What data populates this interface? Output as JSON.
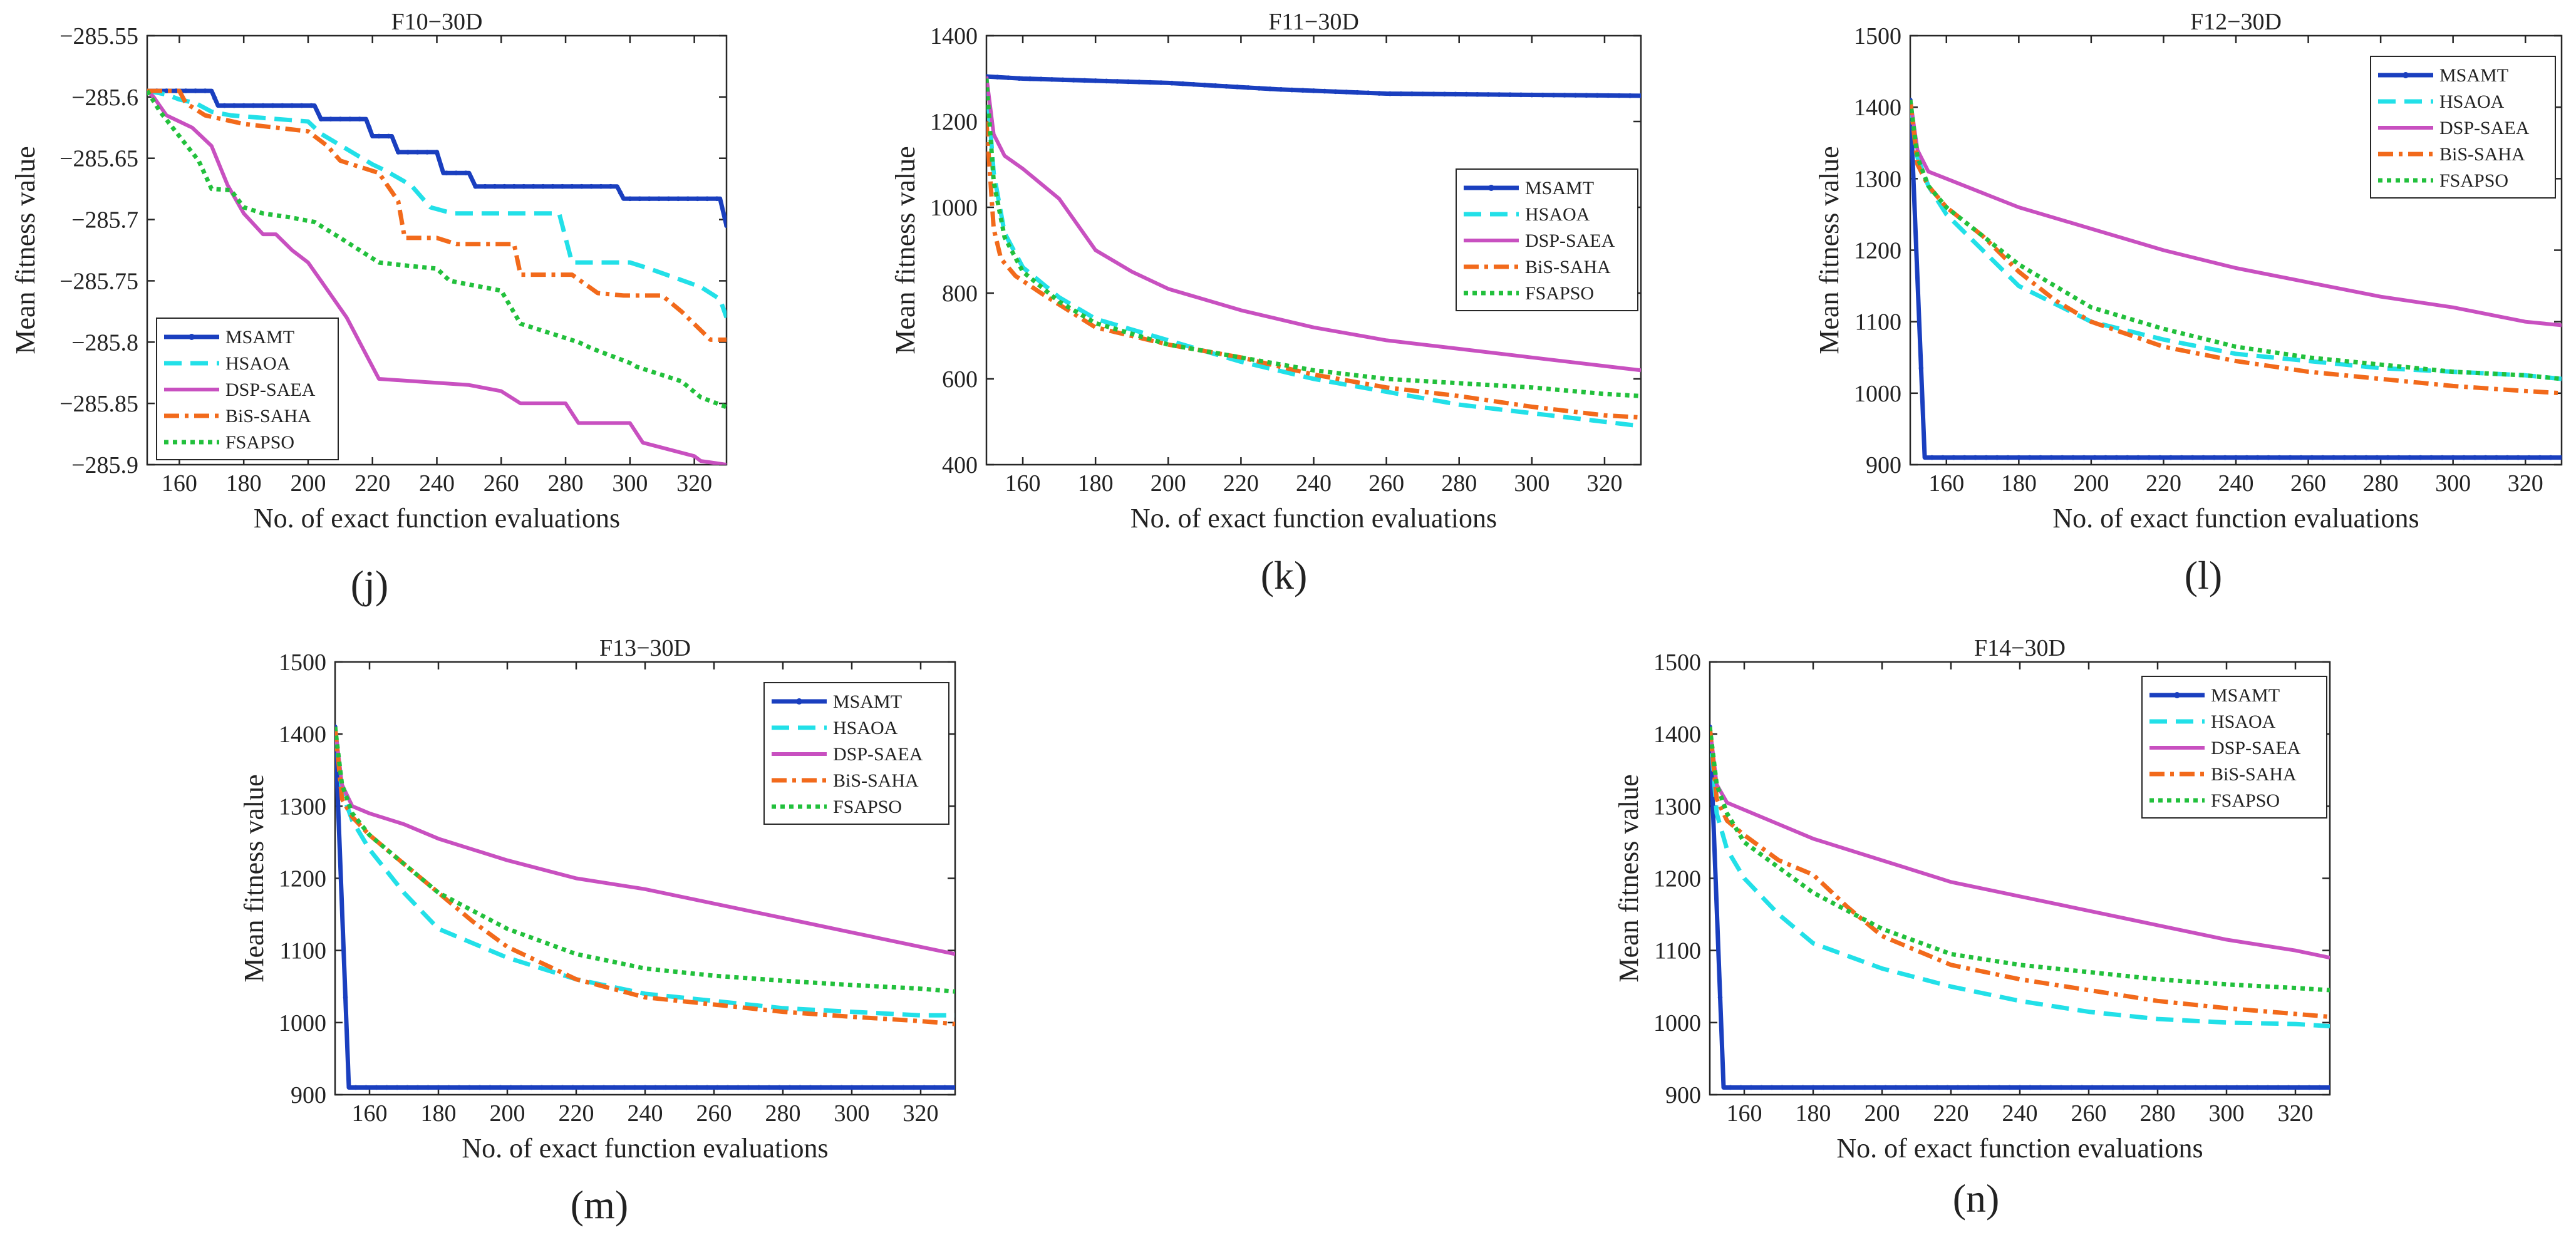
{
  "figure": {
    "series_colors": {
      "MSAMT": "#1a3fbf",
      "HSAOA": "#22e0e8",
      "DSP-SAEA": "#c850c0",
      "BiS-SAHA": "#f26a1b",
      "FSAPSO": "#22c03c"
    }
  },
  "chart_data": [
    {
      "type": "line",
      "panel": "(j)",
      "title": "F10−30D",
      "xlabel": "No. of exact function evaluations",
      "ylabel": "Mean fitness value",
      "xlim": [
        150,
        330
      ],
      "ylim": [
        -285.9,
        -285.55
      ],
      "xticks": [
        160,
        180,
        200,
        220,
        240,
        260,
        280,
        300,
        320
      ],
      "yticks": [
        -285.55,
        -285.6,
        -285.65,
        -285.7,
        -285.75,
        -285.8,
        -285.85,
        -285.9
      ],
      "ytick_labels": [
        "−285.55",
        "−285.6",
        "−285.65",
        "−285.7",
        "−285.75",
        "−285.8",
        "−285.85",
        "−285.9"
      ],
      "legend": "bottom-left",
      "series": [
        {
          "name": "MSAMT",
          "x": [
            150,
            170,
            172,
            202,
            204,
            218,
            220,
            226,
            228,
            240,
            242,
            250,
            252,
            296,
            298,
            328,
            330
          ],
          "y": [
            -285.595,
            -285.595,
            -285.607,
            -285.607,
            -285.618,
            -285.618,
            -285.632,
            -285.632,
            -285.645,
            -285.645,
            -285.662,
            -285.662,
            -285.673,
            -285.673,
            -285.683,
            -285.683,
            -285.705
          ]
        },
        {
          "name": "HSAOA",
          "x": [
            150,
            156,
            160,
            165,
            170,
            176,
            200,
            204,
            220,
            224,
            232,
            238,
            245,
            252,
            278,
            282,
            300,
            306,
            322,
            328,
            330
          ],
          "y": [
            -285.595,
            -285.598,
            -285.602,
            -285.605,
            -285.612,
            -285.615,
            -285.62,
            -285.63,
            -285.655,
            -285.66,
            -285.672,
            -285.69,
            -285.695,
            -285.695,
            -285.695,
            -285.735,
            -285.735,
            -285.74,
            -285.755,
            -285.765,
            -285.78
          ]
        },
        {
          "name": "DSP-SAEA",
          "x": [
            150,
            152,
            156,
            160,
            164,
            170,
            175,
            180,
            186,
            190,
            195,
            200,
            204,
            208,
            212,
            218,
            222,
            250,
            260,
            266,
            280,
            284,
            300,
            304,
            320,
            322,
            330
          ],
          "y": [
            -285.595,
            -285.6,
            -285.615,
            -285.62,
            -285.625,
            -285.64,
            -285.672,
            -285.695,
            -285.712,
            -285.712,
            -285.725,
            -285.735,
            -285.75,
            -285.765,
            -285.78,
            -285.81,
            -285.83,
            -285.835,
            -285.84,
            -285.85,
            -285.85,
            -285.866,
            -285.866,
            -285.882,
            -285.893,
            -285.897,
            -285.9
          ]
        },
        {
          "name": "BiS-SAHA",
          "x": [
            150,
            160,
            162,
            168,
            180,
            200,
            206,
            210,
            222,
            228,
            230,
            240,
            246,
            264,
            266,
            282,
            290,
            298,
            310,
            316,
            325,
            330
          ],
          "y": [
            -285.595,
            -285.595,
            -285.605,
            -285.615,
            -285.622,
            -285.628,
            -285.64,
            -285.652,
            -285.662,
            -285.685,
            -285.715,
            -285.715,
            -285.72,
            -285.72,
            -285.745,
            -285.745,
            -285.76,
            -285.762,
            -285.762,
            -285.775,
            -285.798,
            -285.798
          ]
        },
        {
          "name": "FSAPSO",
          "x": [
            150,
            154,
            160,
            166,
            170,
            176,
            180,
            186,
            194,
            202,
            210,
            216,
            222,
            232,
            240,
            244,
            260,
            266,
            284,
            288,
            300,
            302,
            316,
            322,
            330
          ],
          "y": [
            -285.595,
            -285.612,
            -285.632,
            -285.652,
            -285.675,
            -285.676,
            -285.69,
            -285.695,
            -285.698,
            -285.702,
            -285.715,
            -285.725,
            -285.735,
            -285.738,
            -285.74,
            -285.75,
            -285.758,
            -285.785,
            -285.8,
            -285.805,
            -285.817,
            -285.82,
            -285.832,
            -285.845,
            -285.853
          ]
        }
      ]
    },
    {
      "type": "line",
      "panel": "(k)",
      "title": "F11−30D",
      "xlabel": "No. of exact function evaluations",
      "ylabel": "Mean fitness value",
      "xlim": [
        150,
        330
      ],
      "ylim": [
        400,
        1400
      ],
      "xticks": [
        160,
        180,
        200,
        220,
        240,
        260,
        280,
        300,
        320
      ],
      "yticks": [
        400,
        600,
        800,
        1000,
        1200,
        1400
      ],
      "legend": "center-right",
      "series": [
        {
          "name": "MSAMT",
          "x": [
            150,
            160,
            200,
            230,
            260,
            300,
            330
          ],
          "y": [
            1305,
            1300,
            1290,
            1275,
            1265,
            1262,
            1260
          ]
        },
        {
          "name": "HSAOA",
          "x": [
            150,
            152,
            155,
            160,
            170,
            180,
            200,
            220,
            240,
            260,
            280,
            300,
            320,
            330
          ],
          "y": [
            1300,
            1080,
            940,
            860,
            790,
            740,
            690,
            640,
            600,
            570,
            540,
            520,
            500,
            490
          ]
        },
        {
          "name": "DSP-SAEA",
          "x": [
            150,
            152,
            155,
            160,
            170,
            180,
            190,
            200,
            220,
            240,
            260,
            280,
            300,
            320,
            330
          ],
          "y": [
            1305,
            1170,
            1120,
            1090,
            1020,
            900,
            850,
            810,
            760,
            720,
            690,
            670,
            650,
            630,
            620
          ]
        },
        {
          "name": "BiS-SAHA",
          "x": [
            150,
            152,
            154,
            158,
            165,
            180,
            200,
            220,
            240,
            260,
            280,
            300,
            320,
            330
          ],
          "y": [
            1200,
            950,
            880,
            840,
            800,
            720,
            680,
            650,
            610,
            580,
            560,
            535,
            515,
            510
          ]
        },
        {
          "name": "FSAPSO",
          "x": [
            150,
            152,
            155,
            160,
            170,
            180,
            200,
            220,
            240,
            260,
            280,
            300,
            320,
            330
          ],
          "y": [
            1300,
            1060,
            930,
            850,
            780,
            730,
            680,
            650,
            620,
            600,
            590,
            580,
            565,
            560
          ]
        }
      ]
    },
    {
      "type": "line",
      "panel": "(l)",
      "title": "F12−30D",
      "xlabel": "No. of exact function evaluations",
      "ylabel": "Mean fitness value",
      "xlim": [
        150,
        330
      ],
      "ylim": [
        900,
        1500
      ],
      "xticks": [
        160,
        180,
        200,
        220,
        240,
        260,
        280,
        300,
        320
      ],
      "yticks": [
        900,
        1000,
        1100,
        1200,
        1300,
        1400,
        1500
      ],
      "legend": "top-right",
      "series": [
        {
          "name": "MSAMT",
          "x": [
            150,
            154,
            160,
            200,
            260,
            330
          ],
          "y": [
            1410,
            910,
            910,
            910,
            910,
            910
          ]
        },
        {
          "name": "HSAOA",
          "x": [
            150,
            152,
            155,
            160,
            170,
            180,
            200,
            220,
            240,
            260,
            280,
            300,
            320,
            330
          ],
          "y": [
            1410,
            1330,
            1290,
            1250,
            1200,
            1150,
            1100,
            1075,
            1055,
            1045,
            1035,
            1030,
            1025,
            1020
          ]
        },
        {
          "name": "DSP-SAEA",
          "x": [
            150,
            152,
            155,
            160,
            170,
            180,
            200,
            220,
            240,
            260,
            280,
            300,
            320,
            330
          ],
          "y": [
            1410,
            1340,
            1310,
            1300,
            1280,
            1260,
            1230,
            1200,
            1175,
            1155,
            1135,
            1120,
            1100,
            1095
          ]
        },
        {
          "name": "BiS-SAHA",
          "x": [
            150,
            152,
            155,
            160,
            170,
            180,
            190,
            200,
            220,
            240,
            260,
            280,
            300,
            320,
            330
          ],
          "y": [
            1410,
            1320,
            1290,
            1260,
            1220,
            1170,
            1130,
            1100,
            1065,
            1045,
            1030,
            1020,
            1010,
            1003,
            1000
          ]
        },
        {
          "name": "FSAPSO",
          "x": [
            150,
            152,
            155,
            160,
            170,
            180,
            200,
            220,
            240,
            260,
            280,
            300,
            320,
            330
          ],
          "y": [
            1410,
            1330,
            1290,
            1260,
            1220,
            1180,
            1120,
            1090,
            1065,
            1050,
            1040,
            1030,
            1025,
            1020
          ]
        }
      ]
    },
    {
      "type": "line",
      "panel": "(m)",
      "title": "F13−30D",
      "xlabel": "No. of exact function evaluations",
      "ylabel": "Mean fitness value",
      "xlim": [
        150,
        330
      ],
      "ylim": [
        900,
        1500
      ],
      "xticks": [
        160,
        180,
        200,
        220,
        240,
        260,
        280,
        300,
        320
      ],
      "yticks": [
        900,
        1000,
        1100,
        1200,
        1300,
        1400,
        1500
      ],
      "legend": "top-right",
      "series": [
        {
          "name": "MSAMT",
          "x": [
            150,
            154,
            160,
            200,
            260,
            330
          ],
          "y": [
            1410,
            910,
            910,
            910,
            910,
            910
          ]
        },
        {
          "name": "HSAOA",
          "x": [
            150,
            152,
            155,
            160,
            170,
            180,
            200,
            220,
            240,
            260,
            280,
            300,
            320,
            330
          ],
          "y": [
            1410,
            1320,
            1280,
            1240,
            1180,
            1130,
            1090,
            1060,
            1040,
            1030,
            1020,
            1015,
            1010,
            1010
          ]
        },
        {
          "name": "DSP-SAEA",
          "x": [
            150,
            152,
            155,
            160,
            170,
            180,
            200,
            220,
            240,
            260,
            280,
            300,
            320,
            330
          ],
          "y": [
            1410,
            1330,
            1300,
            1290,
            1275,
            1255,
            1225,
            1200,
            1185,
            1165,
            1145,
            1125,
            1105,
            1095
          ]
        },
        {
          "name": "BiS-SAHA",
          "x": [
            150,
            152,
            155,
            160,
            170,
            180,
            190,
            200,
            220,
            240,
            260,
            280,
            300,
            320,
            330
          ],
          "y": [
            1410,
            1310,
            1285,
            1260,
            1220,
            1180,
            1140,
            1105,
            1060,
            1035,
            1025,
            1015,
            1008,
            1002,
            998
          ]
        },
        {
          "name": "FSAPSO",
          "x": [
            150,
            152,
            155,
            160,
            170,
            180,
            200,
            220,
            240,
            260,
            280,
            300,
            320,
            330
          ],
          "y": [
            1410,
            1330,
            1290,
            1260,
            1220,
            1180,
            1130,
            1095,
            1075,
            1065,
            1058,
            1052,
            1047,
            1043
          ]
        }
      ]
    },
    {
      "type": "line",
      "panel": "(n)",
      "title": "F14−30D",
      "xlabel": "No. of exact function evaluations",
      "ylabel": "Mean fitness value",
      "xlim": [
        150,
        330
      ],
      "ylim": [
        900,
        1500
      ],
      "xticks": [
        160,
        180,
        200,
        220,
        240,
        260,
        280,
        300,
        320
      ],
      "yticks": [
        900,
        1000,
        1100,
        1200,
        1300,
        1400,
        1500
      ],
      "legend": "top-right",
      "series": [
        {
          "name": "MSAMT",
          "x": [
            150,
            154,
            160,
            200,
            260,
            330
          ],
          "y": [
            1410,
            910,
            910,
            910,
            910,
            910
          ]
        },
        {
          "name": "HSAOA",
          "x": [
            150,
            152,
            155,
            160,
            170,
            180,
            200,
            220,
            240,
            260,
            280,
            300,
            320,
            330
          ],
          "y": [
            1410,
            1290,
            1240,
            1200,
            1150,
            1110,
            1075,
            1050,
            1030,
            1015,
            1005,
            1000,
            998,
            995
          ]
        },
        {
          "name": "DSP-SAEA",
          "x": [
            150,
            152,
            155,
            160,
            170,
            180,
            200,
            220,
            240,
            260,
            280,
            300,
            320,
            330
          ],
          "y": [
            1410,
            1330,
            1305,
            1295,
            1275,
            1255,
            1225,
            1195,
            1175,
            1155,
            1135,
            1115,
            1100,
            1090
          ]
        },
        {
          "name": "BiS-SAHA",
          "x": [
            150,
            152,
            155,
            160,
            170,
            180,
            190,
            200,
            220,
            240,
            260,
            280,
            300,
            320,
            330
          ],
          "y": [
            1410,
            1310,
            1280,
            1260,
            1225,
            1205,
            1160,
            1120,
            1080,
            1060,
            1045,
            1030,
            1020,
            1012,
            1008
          ]
        },
        {
          "name": "FSAPSO",
          "x": [
            150,
            152,
            155,
            160,
            170,
            180,
            200,
            220,
            240,
            260,
            280,
            300,
            320,
            330
          ],
          "y": [
            1410,
            1330,
            1290,
            1250,
            1215,
            1180,
            1130,
            1095,
            1080,
            1070,
            1060,
            1053,
            1048,
            1045
          ]
        }
      ]
    }
  ]
}
